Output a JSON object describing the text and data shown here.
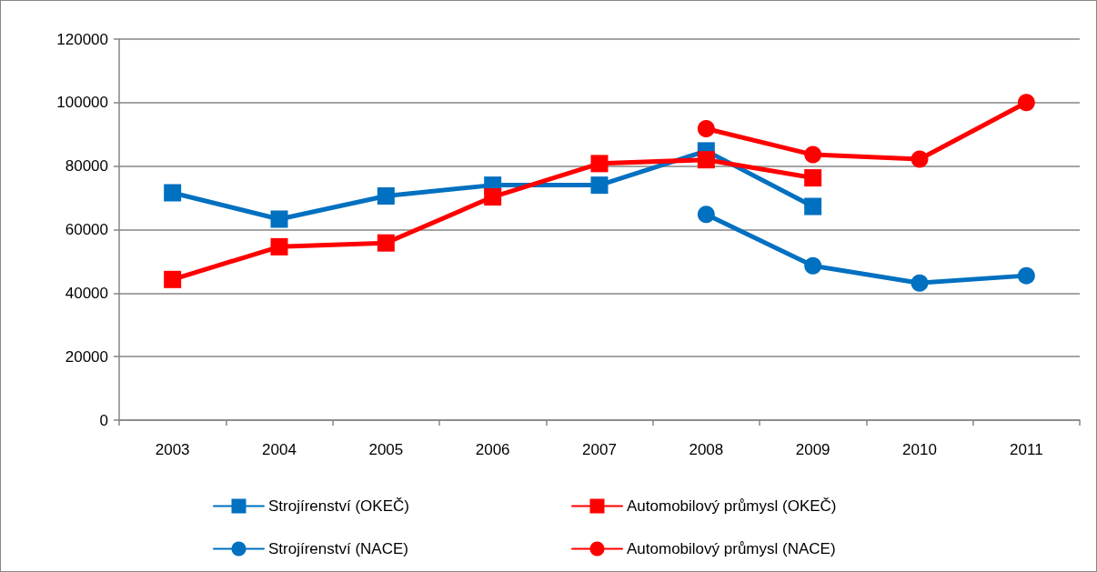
{
  "chart_data": {
    "type": "line",
    "categories": [
      "2003",
      "2004",
      "2005",
      "2006",
      "2007",
      "2008",
      "2009",
      "2010",
      "2011"
    ],
    "series": [
      {
        "name": "Strojírenství (OKEČ)",
        "color": "#0070c0",
        "marker": "square",
        "values": [
          71600,
          63300,
          70600,
          74000,
          74000,
          84800,
          67300,
          null,
          null
        ]
      },
      {
        "name": "Automobilový průmysl (OKEČ)",
        "color": "#ff0000",
        "marker": "square",
        "values": [
          44300,
          54600,
          55800,
          70300,
          80800,
          82000,
          76300,
          null,
          null
        ]
      },
      {
        "name": "Strojírenství (NACE)",
        "color": "#0070c0",
        "marker": "circle",
        "values": [
          null,
          null,
          null,
          null,
          null,
          64800,
          48600,
          43200,
          45500
        ]
      },
      {
        "name": "Automobilový průmysl (NACE)",
        "color": "#ff0000",
        "marker": "circle",
        "values": [
          null,
          null,
          null,
          null,
          null,
          91800,
          83600,
          82200,
          100000
        ]
      }
    ],
    "ylim": [
      0,
      120000
    ],
    "yticks": [
      0,
      20000,
      40000,
      60000,
      80000,
      100000,
      120000
    ],
    "grid": "y",
    "legend": "bottom",
    "line_style": "solid"
  }
}
